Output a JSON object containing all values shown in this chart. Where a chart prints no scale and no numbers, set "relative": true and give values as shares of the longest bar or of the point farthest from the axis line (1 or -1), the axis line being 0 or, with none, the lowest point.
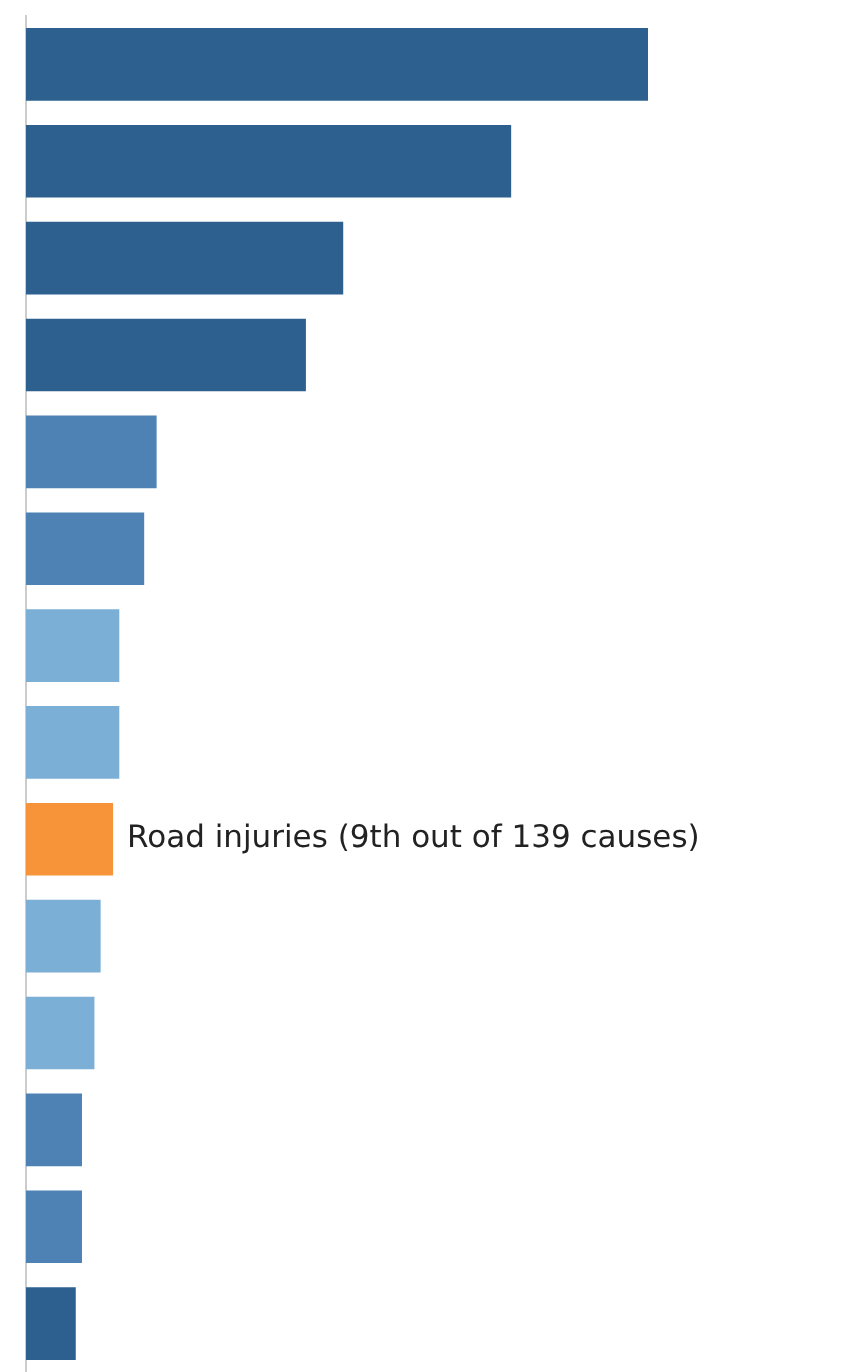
{
  "chart_data": {
    "type": "bar",
    "orientation": "horizontal",
    "relative": true,
    "categories": [
      null,
      null,
      null,
      null,
      null,
      null,
      null,
      null,
      "Road injuries (9th out of 139 causes)",
      null,
      null,
      null,
      null,
      null
    ],
    "values": [
      1,
      0.78,
      0.51,
      0.45,
      0.21,
      0.19,
      0.15,
      0.15,
      0.14,
      0.12,
      0.11,
      0.09,
      0.09,
      0.08
    ],
    "colors": [
      "#2d5f8f",
      "#2d5f8f",
      "#2d5f8f",
      "#2d5f8f",
      "#4e82b4",
      "#4e82b4",
      "#7bafd6",
      "#7bafd6",
      "#f7943a",
      "#7bafd6",
      "#7bafd6",
      "#4e82b4",
      "#4e82b4",
      "#2d5f8f"
    ]
  }
}
